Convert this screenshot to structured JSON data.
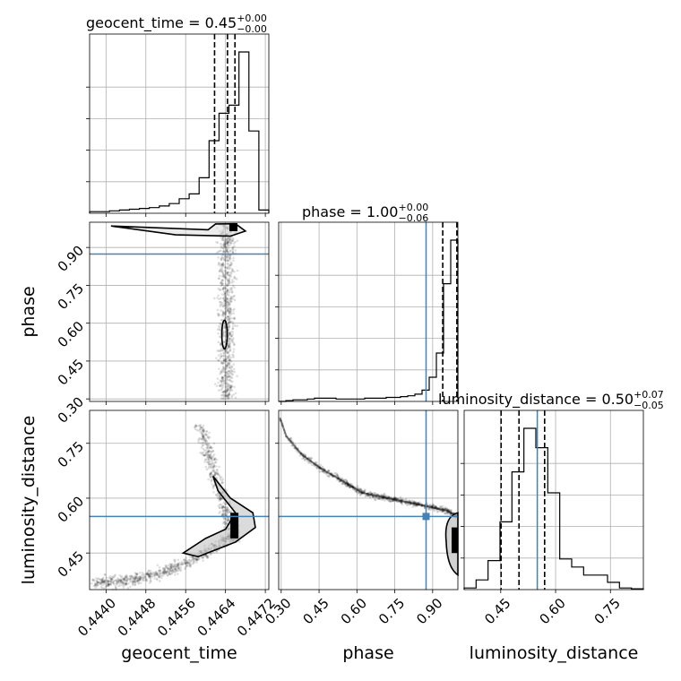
{
  "chart_data": {
    "type": "corner",
    "parameters": [
      "geocent_time",
      "phase",
      "luminosity_distance"
    ],
    "truth_color": "#4682b4",
    "grid": true,
    "titles": [
      {
        "prefix": "geocent_time = 0.45",
        "plus": "+0.00",
        "minus": "−0.00"
      },
      {
        "prefix": "phase = 1.00",
        "plus": "+0.00",
        "minus": "−0.06"
      },
      {
        "prefix": "luminosity_distance = 0.50",
        "plus": "+0.07",
        "minus": "−0.05"
      }
    ],
    "xlabels": [
      "geocent_time",
      "phase",
      "luminosity_distance"
    ],
    "ylabels": [
      "",
      "phase",
      "luminosity_distance"
    ],
    "ranges": {
      "geocent_time": [
        0.44367,
        0.44727
      ],
      "phase": [
        0.29,
        1.0
      ],
      "luminosity_distance": [
        0.35,
        0.84
      ]
    },
    "ticks": {
      "geocent_time": [
        "0.4440",
        "0.4448",
        "0.4456",
        "0.4464",
        "0.4472"
      ],
      "phase": [
        "0.30",
        "0.45",
        "0.60",
        "0.75",
        "0.90"
      ],
      "luminosity_distance": [
        "0.45",
        "0.60",
        "0.75"
      ]
    },
    "truths": {
      "geocent_time": null,
      "phase": 0.874,
      "luminosity_distance": 0.55
    },
    "quantiles": {
      "geocent_time": [
        0.44618,
        0.44644,
        0.44659
      ],
      "phase": [
        0.94,
        0.998,
        0.9999
      ],
      "luminosity_distance": [
        0.451,
        0.5,
        0.57
      ]
    },
    "hist_geocent_time": [
      0.01,
      0.01,
      0.015,
      0.02,
      0.025,
      0.03,
      0.035,
      0.045,
      0.06,
      0.09,
      0.12,
      0.22,
      0.45,
      0.62,
      0.67,
      1.0,
      0.51,
      0.02
    ],
    "hist_phase": [
      0.0,
      0.005,
      0.01,
      0.01,
      0.015,
      0.02,
      0.02,
      0.02,
      0.015,
      0.015,
      0.015,
      0.015,
      0.02,
      0.02,
      0.02,
      0.025,
      0.025,
      0.03,
      0.035,
      0.045,
      0.07,
      0.15,
      0.3,
      0.73,
      1.0
    ],
    "hist_luminosity_distance": [
      0.01,
      0.06,
      0.18,
      0.42,
      0.73,
      1.0,
      0.88,
      0.6,
      0.19,
      0.14,
      0.09,
      0.09,
      0.045,
      0.01,
      0.005
    ],
    "contour_time_phase": [
      [
        0.44605,
        0.97
      ],
      [
        0.4462,
        0.993
      ],
      [
        0.4466,
        0.994
      ],
      [
        0.4468,
        0.965
      ],
      [
        0.4465,
        0.945
      ],
      [
        0.4454,
        0.95
      ],
      [
        0.4441,
        0.985
      ]
    ],
    "contour_time_dist": [
      [
        0.44585,
        0.44
      ],
      [
        0.4466,
        0.48
      ],
      [
        0.447,
        0.52
      ],
      [
        0.44695,
        0.56
      ],
      [
        0.4465,
        0.6
      ],
      [
        0.44615,
        0.66
      ],
      [
        0.44625,
        0.62
      ],
      [
        0.4466,
        0.56
      ],
      [
        0.4464,
        0.515
      ],
      [
        0.446,
        0.49
      ],
      [
        0.44555,
        0.45
      ]
    ],
    "ridge_phase_dist": [
      [
        0.295,
        0.82
      ],
      [
        0.32,
        0.77
      ],
      [
        0.38,
        0.72
      ],
      [
        0.46,
        0.68
      ],
      [
        0.56,
        0.64
      ],
      [
        0.62,
        0.615
      ],
      [
        0.72,
        0.6
      ],
      [
        0.83,
        0.585
      ],
      [
        0.96,
        0.565
      ],
      [
        1.0,
        0.55
      ]
    ]
  }
}
